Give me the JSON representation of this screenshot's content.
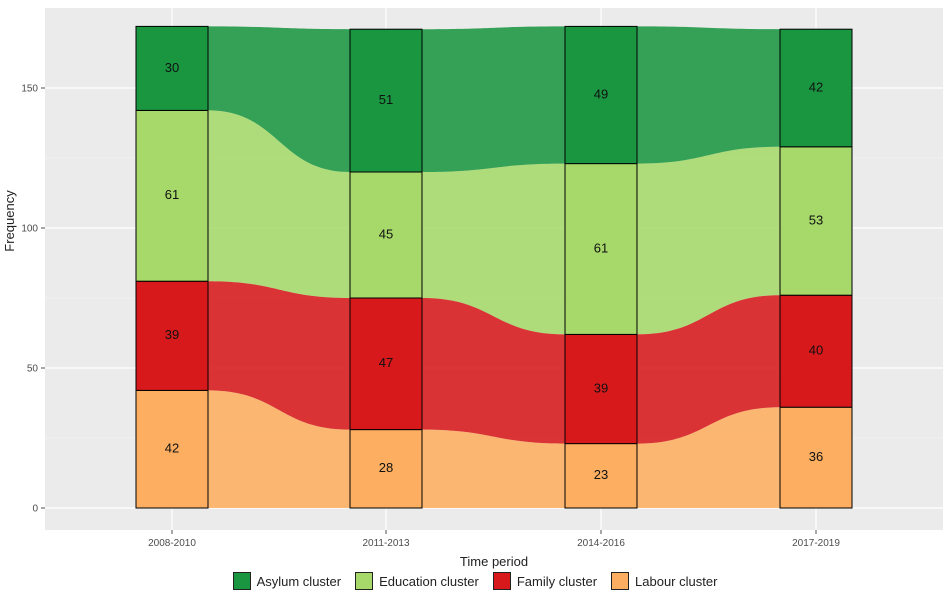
{
  "chart_data": {
    "type": "alluvial",
    "title": "",
    "xlabel": "Time period",
    "ylabel": "Frequency",
    "ylim": [
      0,
      172
    ],
    "yticks": [
      0,
      50,
      100,
      150
    ],
    "categories": [
      "2008-2010",
      "2011-2013",
      "2014-2016",
      "2017-2019"
    ],
    "clusters": [
      "Labour cluster",
      "Family cluster",
      "Education cluster",
      "Asylum cluster"
    ],
    "colors": {
      "Asylum cluster": "#1a9641",
      "Education cluster": "#a6d96a",
      "Family cluster": "#d7191c",
      "Labour cluster": "#fdae61"
    },
    "series": [
      {
        "name": "Asylum cluster",
        "values": [
          30,
          51,
          49,
          42
        ]
      },
      {
        "name": "Education cluster",
        "values": [
          61,
          45,
          61,
          53
        ]
      },
      {
        "name": "Family cluster",
        "values": [
          39,
          47,
          39,
          40
        ]
      },
      {
        "name": "Labour cluster",
        "values": [
          42,
          28,
          23,
          36
        ]
      }
    ],
    "grid": true,
    "legend_position": "bottom"
  },
  "legend": [
    {
      "label": "Asylum cluster",
      "color": "#1a9641"
    },
    {
      "label": "Education cluster",
      "color": "#a6d96a"
    },
    {
      "label": "Family cluster",
      "color": "#d7191c"
    },
    {
      "label": "Labour cluster",
      "color": "#fdae61"
    }
  ]
}
